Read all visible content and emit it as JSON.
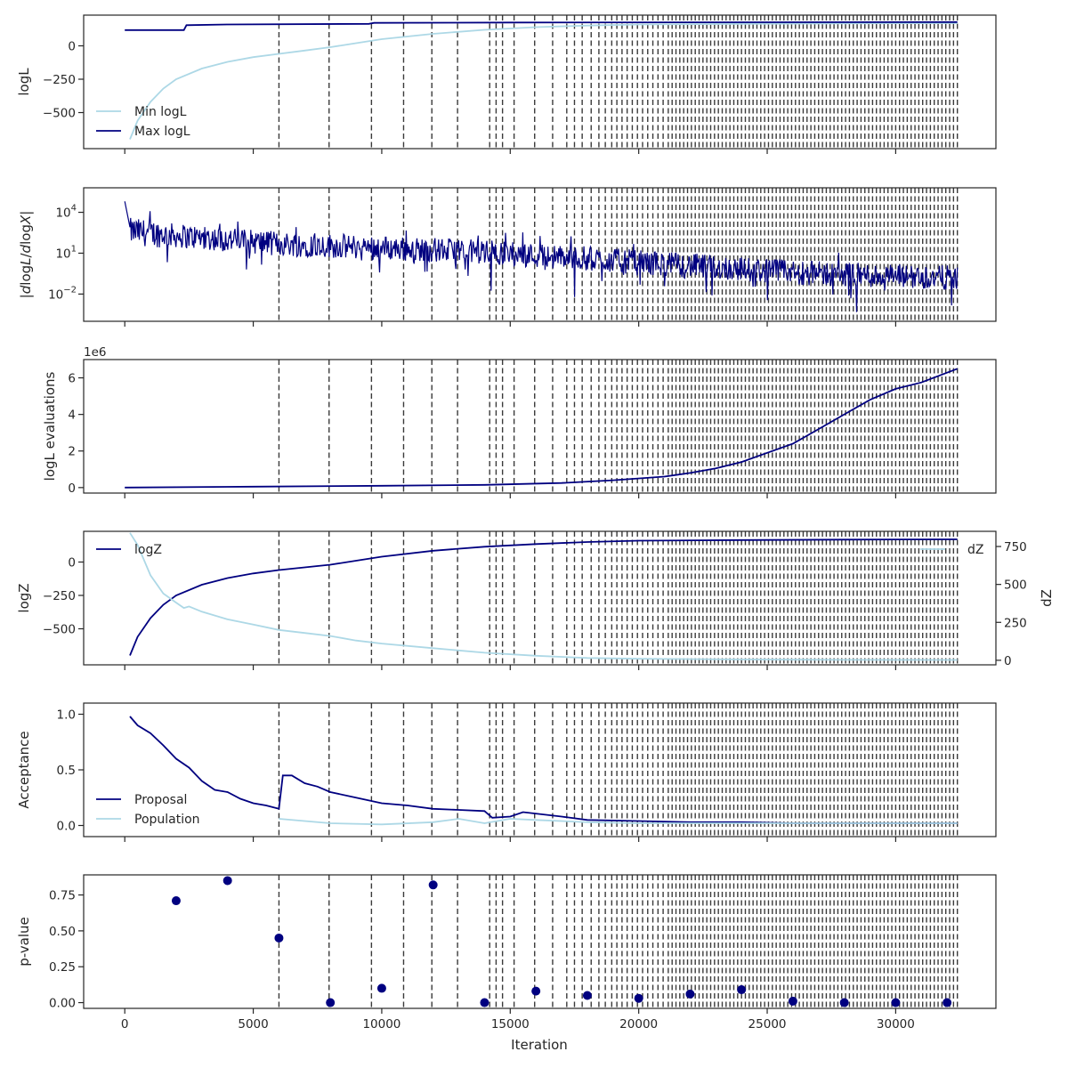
{
  "figure": {
    "xlabel": "Iteration"
  },
  "colors": {
    "navy": "#000080",
    "lightblue": "#add8e6",
    "vline": "#3a3a3a",
    "axis": "#262626"
  },
  "vlines": [
    6000,
    7950,
    9600,
    10850,
    11950,
    12950,
    14200,
    14450,
    14700,
    15150,
    15950,
    16650,
    17200,
    17500,
    17800,
    18150,
    18450,
    18700,
    18950,
    19150,
    19350,
    19550,
    19750,
    19950,
    20150,
    20350,
    20550,
    20750,
    20950,
    21150,
    21300,
    21450,
    21600,
    21750,
    21900,
    22050,
    22200,
    22350,
    22500,
    22650,
    22800,
    22950,
    23100,
    23250,
    23400,
    23550,
    23700,
    23850,
    24000,
    24150,
    24300,
    24450,
    24600,
    24750,
    24900,
    25050,
    25200,
    25350,
    25500,
    25650,
    25800,
    25950,
    26100,
    26250,
    26400,
    26550,
    26700,
    26850,
    27000,
    27150,
    27300,
    27450,
    27600,
    27750,
    27900,
    28050,
    28200,
    28350,
    28500,
    28650,
    28800,
    28950,
    29100,
    29250,
    29400,
    29550,
    29700,
    29850,
    30000,
    30150,
    30300,
    30450,
    30600,
    30750,
    30900,
    31050,
    31200,
    31350,
    31500,
    31650,
    31800,
    31950,
    32100,
    32250,
    32400
  ],
  "chart_data": [
    {
      "type": "line",
      "ylabel": "logL",
      "xlim": [
        -1600,
        33900
      ],
      "ylim": [
        -770,
        230
      ],
      "yticks": [
        {
          "v": 0,
          "label": "0"
        },
        {
          "v": -250,
          "label": "−250"
        },
        {
          "v": -500,
          "label": "−500"
        }
      ],
      "legend": "lower-left",
      "series": [
        {
          "name": "Min logL",
          "color": "#add8e6",
          "x": [
            200,
            500,
            1000,
            1500,
            2000,
            3000,
            4000,
            5000,
            6000,
            7000,
            8000,
            9000,
            10000,
            12000,
            14000,
            16000,
            18000,
            20000,
            24000,
            28000,
            32400
          ],
          "y": [
            -700,
            -560,
            -420,
            -320,
            -250,
            -170,
            -120,
            -85,
            -60,
            -35,
            -10,
            20,
            50,
            90,
            120,
            140,
            152,
            160,
            165,
            168,
            170
          ]
        },
        {
          "name": "Max logL",
          "color": "#000080",
          "x": [
            0,
            2300,
            2400,
            4000,
            9500,
            9700,
            15000,
            32400
          ],
          "y": [
            118,
            118,
            155,
            160,
            165,
            172,
            175,
            178
          ]
        }
      ]
    },
    {
      "type": "line",
      "ylabel": "|dlogL/dlogX|",
      "ylabel_parts": {
        "pre": "|",
        "d1": "d",
        "mid": "log",
        "L": "L",
        "slash": "/",
        "d2": "d",
        "mid2": "log",
        "X": "X",
        "post": "|"
      },
      "yscale": "log",
      "xlim": [
        -1600,
        33900
      ],
      "ylim_log10": [
        -4,
        5.8
      ],
      "yticks": [
        {
          "v": 4,
          "base": "10",
          "exp": "4"
        },
        {
          "v": 1,
          "base": "10",
          "exp": "1"
        },
        {
          "v": -2,
          "base": "10",
          "exp": "−2"
        }
      ],
      "series": [
        {
          "name": "",
          "color": "#000080",
          "note": "noisy band",
          "x": [
            0,
            200,
            2000,
            6000,
            10000,
            14000,
            18000,
            22000,
            26000,
            30000,
            32400
          ],
          "y_log10_center": [
            4.8,
            2.5,
            2.2,
            1.6,
            1.3,
            1.0,
            0.5,
            0.0,
            -0.5,
            -0.8,
            -0.9
          ]
        }
      ]
    },
    {
      "type": "line",
      "ylabel": "logL evaluations",
      "offset_text": "1e6",
      "xlim": [
        -1600,
        33900
      ],
      "ylim": [
        -0.3,
        7.0
      ],
      "yticks": [
        {
          "v": 0,
          "label": "0"
        },
        {
          "v": 2,
          "label": "2"
        },
        {
          "v": 4,
          "label": "4"
        },
        {
          "v": 6,
          "label": "6"
        }
      ],
      "series": [
        {
          "name": "",
          "color": "#000080",
          "x": [
            0,
            5000,
            10000,
            14000,
            17000,
            19000,
            21000,
            22000,
            23000,
            24000,
            25000,
            26000,
            27000,
            28000,
            29000,
            30000,
            31000,
            32400
          ],
          "y": [
            0.0,
            0.05,
            0.1,
            0.15,
            0.25,
            0.4,
            0.6,
            0.8,
            1.05,
            1.4,
            1.9,
            2.4,
            3.2,
            4.0,
            4.8,
            5.4,
            5.75,
            6.5
          ]
        }
      ]
    },
    {
      "type": "line",
      "ylabel": "logZ",
      "ylabel_right": "dZ",
      "xlim": [
        -1600,
        33900
      ],
      "ylim": [
        -770,
        230
      ],
      "yticks": [
        {
          "v": 0,
          "label": "0"
        },
        {
          "v": -250,
          "label": "−250"
        },
        {
          "v": -500,
          "label": "−500"
        }
      ],
      "y2lim": [
        -30,
        850
      ],
      "y2ticks": [
        {
          "v": 0,
          "label": "0"
        },
        {
          "v": 250,
          "label": "250"
        },
        {
          "v": 500,
          "label": "500"
        },
        {
          "v": 750,
          "label": "750"
        }
      ],
      "legend": "top-left",
      "legend_right": "top-right",
      "series": [
        {
          "name": "logZ",
          "color": "#000080",
          "axis": "left",
          "x": [
            200,
            500,
            1000,
            1500,
            2000,
            3000,
            4000,
            5000,
            6000,
            7000,
            8000,
            9000,
            10000,
            12000,
            14000,
            16000,
            18000,
            20000,
            24000,
            28000,
            32400
          ],
          "y": [
            -700,
            -560,
            -420,
            -320,
            -250,
            -170,
            -120,
            -85,
            -60,
            -40,
            -20,
            10,
            40,
            85,
            115,
            135,
            150,
            160,
            165,
            168,
            170
          ]
        },
        {
          "name": "dZ",
          "color": "#add8e6",
          "axis": "right",
          "x": [
            200,
            500,
            1000,
            1500,
            2000,
            2300,
            2500,
            3000,
            4000,
            5000,
            6000,
            7000,
            8000,
            9000,
            10000,
            12000,
            14000,
            16000,
            18000,
            20000,
            24000,
            28000,
            32400
          ],
          "y": [
            840,
            760,
            560,
            440,
            380,
            345,
            355,
            320,
            270,
            235,
            200,
            180,
            160,
            130,
            110,
            80,
            50,
            30,
            15,
            10,
            5,
            3,
            2
          ]
        }
      ]
    },
    {
      "type": "line",
      "ylabel": "Acceptance",
      "xlim": [
        -1600,
        33900
      ],
      "ylim": [
        -0.1,
        1.1
      ],
      "yticks": [
        {
          "v": 0,
          "label": "0.0"
        },
        {
          "v": 0.5,
          "label": "0.5"
        },
        {
          "v": 1,
          "label": "1.0"
        }
      ],
      "legend": "lower-left",
      "series": [
        {
          "name": "Proposal",
          "color": "#000080",
          "x": [
            200,
            500,
            1000,
            1500,
            2000,
            2500,
            3000,
            3500,
            4000,
            4500,
            5000,
            5500,
            6000,
            6150,
            6500,
            7000,
            7500,
            8000,
            9000,
            10000,
            11000,
            12000,
            13000,
            14000,
            14300,
            15000,
            15500,
            17000,
            18000,
            20000,
            22000,
            24000,
            26000,
            28000,
            30000,
            32400
          ],
          "y": [
            0.98,
            0.9,
            0.83,
            0.72,
            0.6,
            0.52,
            0.4,
            0.32,
            0.3,
            0.24,
            0.2,
            0.18,
            0.15,
            0.45,
            0.45,
            0.38,
            0.35,
            0.3,
            0.25,
            0.2,
            0.18,
            0.15,
            0.14,
            0.13,
            0.07,
            0.08,
            0.12,
            0.08,
            0.05,
            0.04,
            0.03,
            0.03,
            0.02,
            0.02,
            0.02,
            0.02
          ]
        },
        {
          "name": "Population",
          "color": "#add8e6",
          "x": [
            6000,
            8000,
            10000,
            12000,
            13000,
            14000,
            15000,
            16000,
            18000,
            20000,
            22000,
            26000,
            32400
          ],
          "y": [
            0.06,
            0.02,
            0.01,
            0.03,
            0.06,
            0.02,
            0.06,
            0.05,
            0.03,
            0.02,
            0.02,
            0.02,
            0.02
          ]
        }
      ]
    },
    {
      "type": "scatter",
      "ylabel": "p-value",
      "xlabel": "Iteration",
      "xlim": [
        -1600,
        33900
      ],
      "ylim": [
        -0.04,
        0.89
      ],
      "yticks": [
        {
          "v": 0,
          "label": "0.00"
        },
        {
          "v": 0.25,
          "label": "0.25"
        },
        {
          "v": 0.5,
          "label": "0.50"
        },
        {
          "v": 0.75,
          "label": "0.75"
        }
      ],
      "xticks": [
        {
          "v": 0,
          "label": "0"
        },
        {
          "v": 5000,
          "label": "5000"
        },
        {
          "v": 10000,
          "label": "10000"
        },
        {
          "v": 15000,
          "label": "15000"
        },
        {
          "v": 20000,
          "label": "20000"
        },
        {
          "v": 25000,
          "label": "25000"
        },
        {
          "v": 30000,
          "label": "30000"
        }
      ],
      "series": [
        {
          "name": "",
          "color": "#000080",
          "x": [
            2000,
            4000,
            6000,
            8000,
            10000,
            12000,
            14000,
            16000,
            18000,
            20000,
            22000,
            24000,
            26000,
            28000,
            30000,
            32000
          ],
          "y": [
            0.71,
            0.85,
            0.45,
            0.0,
            0.1,
            0.82,
            0.0,
            0.08,
            0.05,
            0.03,
            0.06,
            0.09,
            0.01,
            0.0,
            0.0,
            0.0
          ]
        }
      ]
    }
  ]
}
